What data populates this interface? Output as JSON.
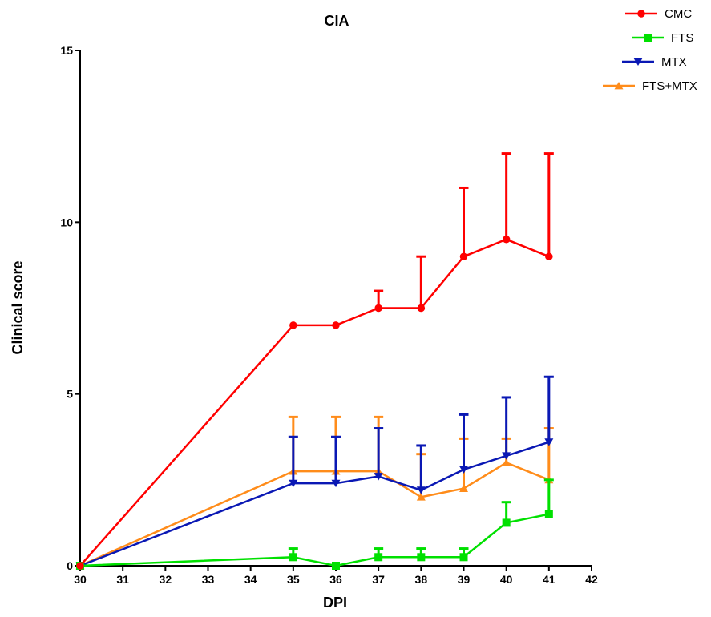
{
  "chart_data": {
    "type": "line",
    "title": "CIA",
    "xlabel": "DPI",
    "ylabel": "Clinical score",
    "xlim": [
      30,
      42
    ],
    "ylim": [
      0,
      15
    ],
    "x_ticks": [
      30,
      31,
      32,
      33,
      34,
      35,
      36,
      37,
      38,
      39,
      40,
      41,
      42
    ],
    "y_ticks": [
      0,
      5,
      10,
      15
    ],
    "grid": false,
    "legend_position": "top-right",
    "series": [
      {
        "name": "CMC",
        "color": "#ff0000",
        "marker": "circle",
        "x": [
          30,
          35,
          36,
          37,
          38,
          39,
          40,
          41
        ],
        "y": [
          0,
          7.0,
          7.0,
          7.5,
          7.5,
          9.0,
          9.5,
          9.0
        ],
        "error_upper": [
          0,
          7.0,
          7.0,
          8.0,
          9.0,
          11.0,
          12.0,
          12.0
        ]
      },
      {
        "name": "FTS",
        "color": "#00e000",
        "marker": "square",
        "x": [
          30,
          35,
          36,
          37,
          38,
          39,
          40,
          41
        ],
        "y": [
          0,
          0.25,
          0,
          0.25,
          0.25,
          0.25,
          1.25,
          1.5
        ],
        "error_upper": [
          0,
          0.5,
          0,
          0.5,
          0.5,
          0.5,
          1.85,
          2.5
        ]
      },
      {
        "name": "MTX",
        "color": "#0a18b4",
        "marker": "triangle-down",
        "x": [
          30,
          35,
          36,
          37,
          38,
          39,
          40,
          41
        ],
        "y": [
          0,
          2.4,
          2.4,
          2.6,
          2.2,
          2.8,
          3.2,
          3.6
        ],
        "error_upper": [
          0,
          3.75,
          3.75,
          4.0,
          3.5,
          4.4,
          4.9,
          5.5
        ]
      },
      {
        "name": "FTS+MTX",
        "color": "#ff8c1a",
        "marker": "triangle-up",
        "x": [
          30,
          35,
          36,
          37,
          38,
          39,
          40,
          41
        ],
        "y": [
          0,
          2.75,
          2.75,
          2.75,
          2.0,
          2.25,
          3.0,
          2.5
        ],
        "error_upper": [
          0,
          4.33,
          4.33,
          4.33,
          3.25,
          3.7,
          3.7,
          4.0
        ]
      }
    ]
  }
}
